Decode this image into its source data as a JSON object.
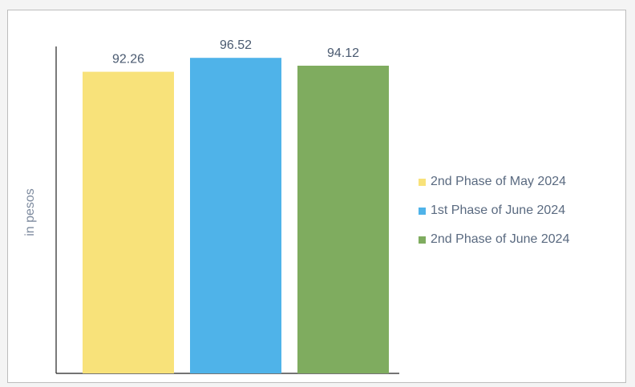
{
  "chart_data": {
    "type": "bar",
    "categories": [
      "2nd Phase of May 2024",
      "1st Phase of June 2024",
      "2nd Phase of June 2024"
    ],
    "values": [
      92.26,
      96.52,
      94.12
    ],
    "data_labels": [
      "92.26",
      "96.52",
      "94.12"
    ],
    "colors": [
      "#f8e27a",
      "#4fb3e9",
      "#7fac5f"
    ],
    "title": "",
    "xlabel": "",
    "ylabel": "in pesos",
    "ylim": [
      0,
      100
    ],
    "grid": false,
    "legend_placement": "right"
  }
}
